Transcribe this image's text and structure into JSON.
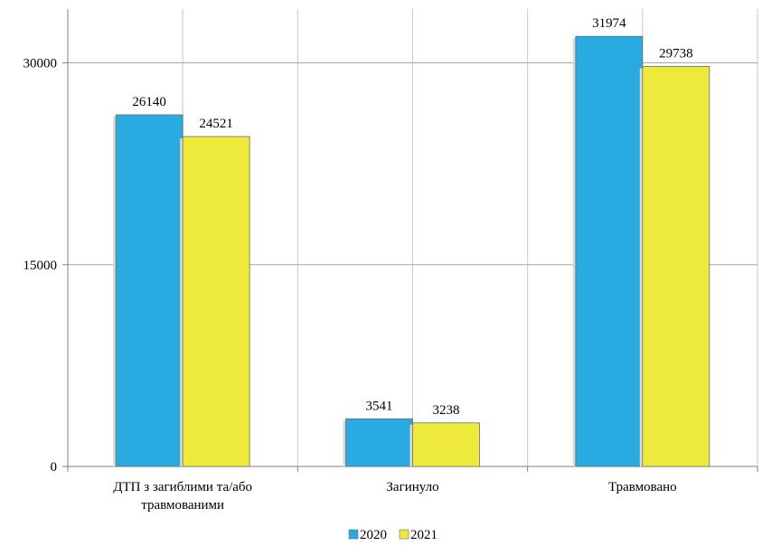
{
  "chart_data": {
    "type": "bar",
    "title": "",
    "xlabel": "",
    "ylabel": "",
    "categories": [
      "ДТП з загиблими та/або травмованими",
      "Загинуло",
      "Травмовано"
    ],
    "category_lines": [
      [
        "ДТП з загиблими та/або",
        "травмованими"
      ],
      [
        "Загинуло"
      ],
      [
        "Травмовано"
      ]
    ],
    "series": [
      {
        "name": "2020",
        "values": [
          26140,
          3541,
          31974
        ],
        "color": "#29ABE2"
      },
      {
        "name": "2021",
        "values": [
          24521,
          3238,
          29738
        ],
        "color": "#EEEA3C"
      }
    ],
    "ylim": [
      0,
      34000
    ],
    "yticks": [
      0,
      15000,
      30000
    ],
    "grid": true,
    "legend": "bottom-center"
  }
}
